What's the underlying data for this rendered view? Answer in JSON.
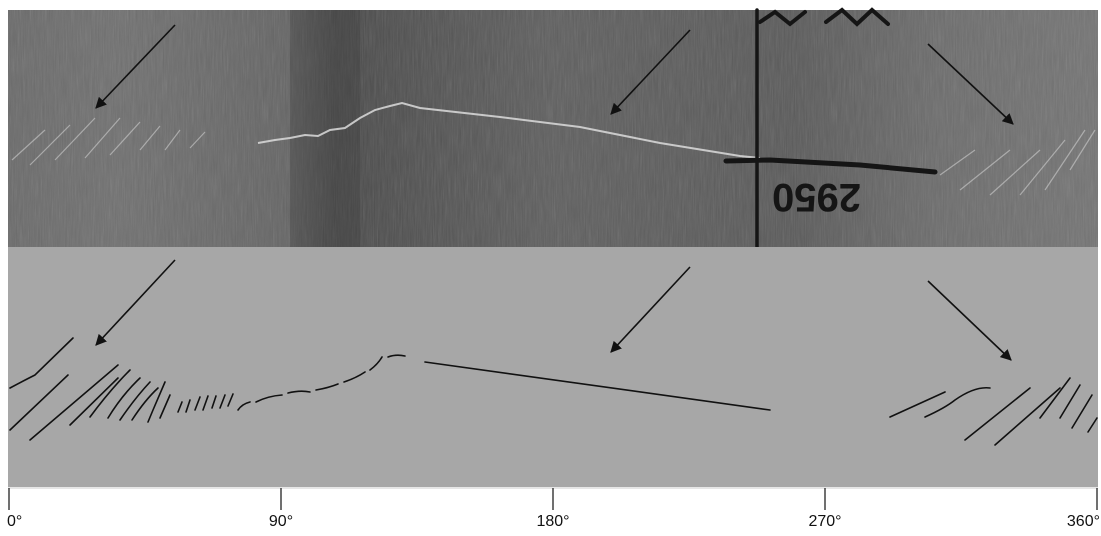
{
  "figure": {
    "core_photo": {
      "handwritten_label": "2950"
    },
    "azimuth_scale": {
      "ticks": [
        {
          "label": "0°",
          "degrees": 0
        },
        {
          "label": "90°",
          "degrees": 90
        },
        {
          "label": "180°",
          "degrees": 180
        },
        {
          "label": "270°",
          "degrees": 270
        },
        {
          "label": "360°",
          "degrees": 360
        }
      ]
    },
    "colors": {
      "trace_panel_bg": "#a7a7a7",
      "ink": "#111111",
      "photo_dark": "#4a4a4a",
      "photo_light": "#6e6e6e"
    }
  }
}
